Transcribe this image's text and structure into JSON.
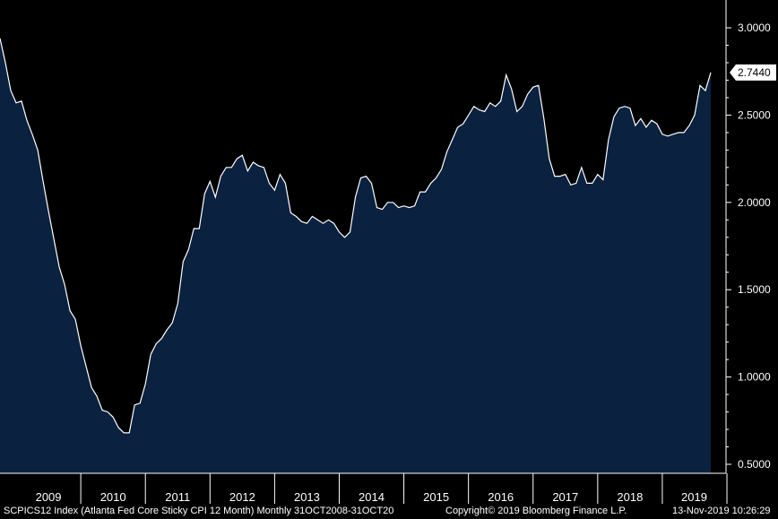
{
  "chart_data": {
    "type": "area",
    "title": "",
    "xlabel": "",
    "ylabel": "",
    "ylim": [
      0.4,
      3.15
    ],
    "y_ticks": [
      "3.0000",
      "2.5000",
      "2.0000",
      "1.5000",
      "1.0000",
      "0.5000"
    ],
    "x_tick_labels": [
      "2009",
      "2010",
      "2011",
      "2012",
      "2013",
      "2014",
      "2015",
      "2016",
      "2017",
      "2018",
      "2019"
    ],
    "last_value_label": "2.7440",
    "grid": false,
    "colors": {
      "background": "#000000",
      "area": "#0b2140",
      "line": "#ffffff",
      "last_value_bg": "#ffffff"
    },
    "series": [
      {
        "x": [
          "2008-10",
          "2008-11",
          "2008-12",
          "2009-01",
          "2009-02",
          "2009-03",
          "2009-04",
          "2009-05",
          "2009-06",
          "2009-07",
          "2009-08",
          "2009-09",
          "2009-10",
          "2009-11",
          "2009-12",
          "2010-01",
          "2010-02",
          "2010-03",
          "2010-04",
          "2010-05",
          "2010-06",
          "2010-07",
          "2010-08",
          "2010-09",
          "2010-10",
          "2010-11",
          "2010-12",
          "2011-01",
          "2011-02",
          "2011-03",
          "2011-04",
          "2011-05",
          "2011-06",
          "2011-07",
          "2011-08",
          "2011-09",
          "2011-10",
          "2011-11",
          "2011-12",
          "2012-01",
          "2012-02",
          "2012-03",
          "2012-04",
          "2012-05",
          "2012-06",
          "2012-07",
          "2012-08",
          "2012-09",
          "2012-10",
          "2012-11",
          "2012-12",
          "2013-01",
          "2013-02",
          "2013-03",
          "2013-04",
          "2013-05",
          "2013-06",
          "2013-07",
          "2013-08",
          "2013-09",
          "2013-10",
          "2013-11",
          "2013-12",
          "2014-01",
          "2014-02",
          "2014-03",
          "2014-04",
          "2014-05",
          "2014-06",
          "2014-07",
          "2014-08",
          "2014-09",
          "2014-10",
          "2014-11",
          "2014-12",
          "2015-01",
          "2015-02",
          "2015-03",
          "2015-04",
          "2015-05",
          "2015-06",
          "2015-07",
          "2015-08",
          "2015-09",
          "2015-10",
          "2015-11",
          "2015-12",
          "2016-01",
          "2016-02",
          "2016-03",
          "2016-04",
          "2016-05",
          "2016-06",
          "2016-07",
          "2016-08",
          "2016-09",
          "2016-10",
          "2016-11",
          "2016-12",
          "2017-01",
          "2017-02",
          "2017-03",
          "2017-04",
          "2017-05",
          "2017-06",
          "2017-07",
          "2017-08",
          "2017-09",
          "2017-10",
          "2017-11",
          "2017-12",
          "2018-01",
          "2018-02",
          "2018-03",
          "2018-04",
          "2018-05",
          "2018-06",
          "2018-07",
          "2018-08",
          "2018-09",
          "2018-10",
          "2018-11",
          "2018-12",
          "2019-01",
          "2019-02",
          "2019-03",
          "2019-04",
          "2019-05",
          "2019-06",
          "2019-07",
          "2019-08",
          "2019-09",
          "2019-10"
        ],
        "values": [
          2.94,
          2.8,
          2.64,
          2.57,
          2.58,
          2.47,
          2.39,
          2.3,
          2.12,
          1.95,
          1.79,
          1.63,
          1.53,
          1.38,
          1.33,
          1.18,
          1.06,
          0.94,
          0.89,
          0.81,
          0.8,
          0.77,
          0.71,
          0.68,
          0.68,
          0.84,
          0.85,
          0.96,
          1.13,
          1.19,
          1.22,
          1.27,
          1.31,
          1.42,
          1.66,
          1.73,
          1.85,
          1.85,
          2.05,
          2.12,
          2.03,
          2.15,
          2.2,
          2.2,
          2.25,
          2.27,
          2.18,
          2.23,
          2.21,
          2.2,
          2.11,
          2.07,
          2.16,
          2.11,
          1.94,
          1.92,
          1.89,
          1.88,
          1.92,
          1.9,
          1.88,
          1.9,
          1.88,
          1.83,
          1.8,
          1.83,
          2.03,
          2.14,
          2.15,
          2.11,
          1.97,
          1.96,
          2.0,
          2.0,
          1.97,
          1.98,
          1.97,
          1.98,
          2.06,
          2.06,
          2.11,
          2.14,
          2.19,
          2.29,
          2.36,
          2.43,
          2.45,
          2.5,
          2.55,
          2.53,
          2.52,
          2.57,
          2.55,
          2.58,
          2.73,
          2.65,
          2.52,
          2.55,
          2.62,
          2.66,
          2.67,
          2.48,
          2.25,
          2.15,
          2.15,
          2.16,
          2.1,
          2.11,
          2.2,
          2.11,
          2.11,
          2.16,
          2.13,
          2.36,
          2.49,
          2.54,
          2.55,
          2.54,
          2.44,
          2.48,
          2.43,
          2.47,
          2.45,
          2.39,
          2.38,
          2.39,
          2.4,
          2.4,
          2.44,
          2.5,
          2.67,
          2.64,
          2.744
        ]
      }
    ]
  },
  "footer": {
    "left": "SCPICS12 Index (Atlanta Fed Core Sticky CPI 12 Month)  Monthly 31OCT2008-31OCT20",
    "center": "Copyright© 2019 Bloomberg Finance L.P.",
    "right": "13-Nov-2019 10:26:29"
  }
}
